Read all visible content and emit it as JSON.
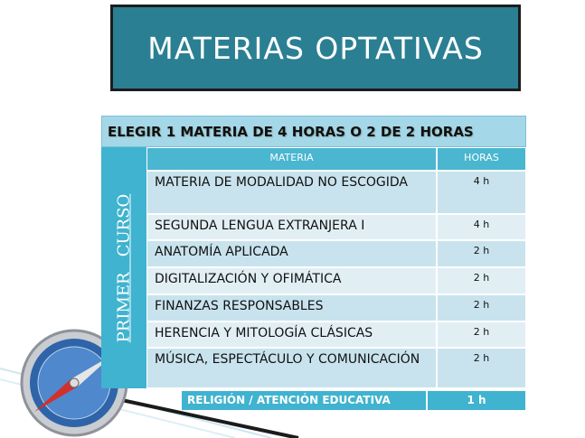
{
  "title": "MATERIAS OPTATIVAS",
  "instruction": "ELEGIR 1 MATERIA DE 4 HORAS O 2 DE 2 HORAS",
  "side_label": "PRIMER   CURSO",
  "table": {
    "columns": [
      "MATERIA",
      "HORAS"
    ],
    "rows": [
      [
        "MATERIA DE MODALIDAD NO ESCOGIDA",
        "4 h"
      ],
      [
        "SEGUNDA LENGUA EXTRANJERA I",
        "4 h"
      ],
      [
        "ANATOMÍA APLICADA",
        "2 h"
      ],
      [
        "DIGITALIZACIÓN Y OFIMÁTICA",
        "2 h"
      ],
      [
        "FINANZAS RESPONSABLES",
        "2 h"
      ],
      [
        "HERENCIA Y MITOLOGÍA CLÁSICAS",
        "2 h"
      ],
      [
        "MÚSICA, ESPECTÁCULO Y COMUNICACIÓN",
        "2 h"
      ]
    ]
  },
  "footer_row": [
    "RELIGIÓN / ATENCIÓN EDUCATIVA",
    "1 h"
  ]
}
